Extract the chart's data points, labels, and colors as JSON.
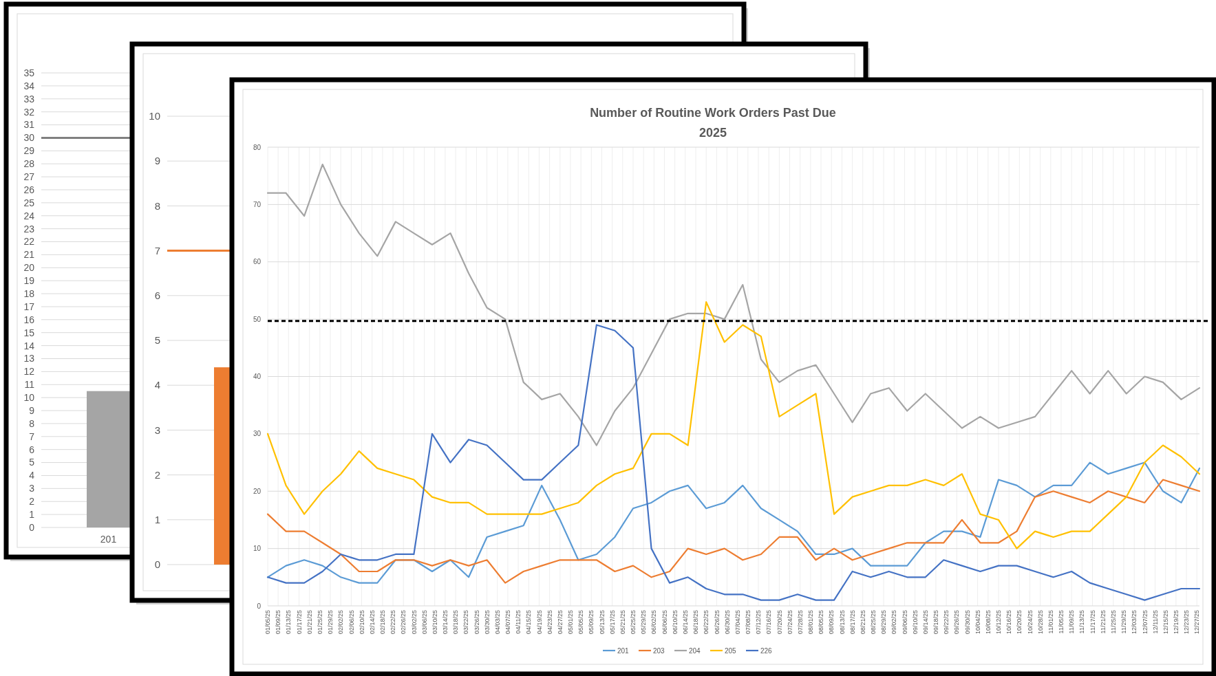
{
  "chart_data": [
    {
      "type": "bar",
      "categories": [
        "201"
      ],
      "values": [
        10.5
      ],
      "color": "#a5a5a5",
      "ylim": [
        0,
        35
      ],
      "yticks": [
        0,
        1,
        2,
        3,
        4,
        5,
        6,
        7,
        8,
        9,
        10,
        11,
        12,
        13,
        14,
        15,
        16,
        17,
        18,
        19,
        20,
        21,
        22,
        23,
        24,
        25,
        26,
        27,
        28,
        29,
        30,
        31,
        32,
        33,
        34,
        35
      ],
      "grid": "y",
      "ref_lines": [
        {
          "axis": "y",
          "value": 30,
          "color": "#808080"
        }
      ]
    },
    {
      "type": "bar",
      "categories": [
        null
      ],
      "values": [
        4.4
      ],
      "color": "#ed7d31",
      "ylim": [
        0,
        10
      ],
      "yticks": [
        0,
        1,
        2,
        3,
        4,
        5,
        6,
        7,
        8,
        9,
        10
      ],
      "grid": "y",
      "ref_lines": [
        {
          "axis": "y",
          "value": 7,
          "color": "#ed7d31"
        }
      ]
    },
    {
      "type": "line",
      "title": "Number of Routine Work Orders Past Due",
      "subtitle": "2025",
      "grid": true,
      "legend": "bottom",
      "line_style": "solid",
      "x": [
        "2025-01-05",
        "2025-01-12",
        "2025-01-19",
        "2025-01-26",
        "2025-02-02",
        "2025-02-09",
        "2025-02-16",
        "2025-02-23",
        "2025-03-02",
        "2025-03-09",
        "2025-03-16",
        "2025-03-23",
        "2025-03-30",
        "2025-04-06",
        "2025-04-13",
        "2025-04-20",
        "2025-04-27",
        "2025-05-04",
        "2025-05-11",
        "2025-05-18",
        "2025-05-25",
        "2025-06-01",
        "2025-06-08",
        "2025-06-15",
        "2025-06-22",
        "2025-06-29",
        "2025-07-06",
        "2025-07-13",
        "2025-07-20",
        "2025-07-27",
        "2025-08-03",
        "2025-08-10",
        "2025-08-17",
        "2025-08-24",
        "2025-08-31",
        "2025-09-07",
        "2025-09-14",
        "2025-09-21",
        "2025-09-28",
        "2025-10-05",
        "2025-10-12",
        "2025-10-19",
        "2025-10-26",
        "2025-11-02",
        "2025-11-09",
        "2025-11-16",
        "2025-11-23",
        "2025-11-30",
        "2025-12-07",
        "2025-12-14",
        "2025-12-21",
        "2025-12-28"
      ],
      "xlim": [
        "2025-01-05",
        "2025-12-28"
      ],
      "xticks": [
        {
          "value": "2025-01-05",
          "label": "01/05/25"
        },
        {
          "value": "2025-01-09",
          "label": "01/09/25"
        },
        {
          "value": "2025-01-13",
          "label": "01/13/25"
        },
        {
          "value": "2025-01-17",
          "label": "01/17/25"
        },
        {
          "value": "2025-01-21",
          "label": "01/21/25"
        },
        {
          "value": "2025-01-25",
          "label": "01/25/25"
        },
        {
          "value": "2025-01-29",
          "label": "01/29/25"
        },
        {
          "value": "2025-02-02",
          "label": "02/02/25"
        },
        {
          "value": "2025-02-06",
          "label": "02/06/25"
        },
        {
          "value": "2025-02-10",
          "label": "02/10/25"
        },
        {
          "value": "2025-02-14",
          "label": "02/14/25"
        },
        {
          "value": "2025-02-18",
          "label": "02/18/25"
        },
        {
          "value": "2025-02-22",
          "label": "02/22/25"
        },
        {
          "value": "2025-02-26",
          "label": "02/26/25"
        },
        {
          "value": "2025-03-02",
          "label": "03/02/25"
        },
        {
          "value": "2025-03-06",
          "label": "03/06/25"
        },
        {
          "value": "2025-03-10",
          "label": "03/10/25"
        },
        {
          "value": "2025-03-14",
          "label": "03/14/25"
        },
        {
          "value": "2025-03-18",
          "label": "03/18/25"
        },
        {
          "value": "2025-03-22",
          "label": "03/22/25"
        },
        {
          "value": "2025-03-26",
          "label": "03/26/25"
        },
        {
          "value": "2025-03-30",
          "label": "03/30/25"
        },
        {
          "value": "2025-04-03",
          "label": "04/03/25"
        },
        {
          "value": "2025-04-07",
          "label": "04/07/25"
        },
        {
          "value": "2025-04-11",
          "label": "04/11/25"
        },
        {
          "value": "2025-04-15",
          "label": "04/15/25"
        },
        {
          "value": "2025-04-19",
          "label": "04/19/25"
        },
        {
          "value": "2025-04-23",
          "label": "04/23/25"
        },
        {
          "value": "2025-04-27",
          "label": "04/27/25"
        },
        {
          "value": "2025-05-01",
          "label": "05/01/25"
        },
        {
          "value": "2025-05-05",
          "label": "05/05/25"
        },
        {
          "value": "2025-05-09",
          "label": "05/09/25"
        },
        {
          "value": "2025-05-13",
          "label": "05/13/25"
        },
        {
          "value": "2025-05-17",
          "label": "05/17/25"
        },
        {
          "value": "2025-05-21",
          "label": "05/21/25"
        },
        {
          "value": "2025-05-25",
          "label": "05/25/25"
        },
        {
          "value": "2025-05-29",
          "label": "05/29/25"
        },
        {
          "value": "2025-06-02",
          "label": "06/02/25"
        },
        {
          "value": "2025-06-06",
          "label": "06/06/25"
        },
        {
          "value": "2025-06-10",
          "label": "06/10/25"
        },
        {
          "value": "2025-06-14",
          "label": "06/14/25"
        },
        {
          "value": "2025-06-18",
          "label": "06/18/25"
        },
        {
          "value": "2025-06-22",
          "label": "06/22/25"
        },
        {
          "value": "2025-06-26",
          "label": "06/26/25"
        },
        {
          "value": "2025-06-30",
          "label": "06/30/25"
        },
        {
          "value": "2025-07-04",
          "label": "07/04/25"
        },
        {
          "value": "2025-07-08",
          "label": "07/08/25"
        },
        {
          "value": "2025-07-12",
          "label": "07/12/25"
        },
        {
          "value": "2025-07-16",
          "label": "07/16/25"
        },
        {
          "value": "2025-07-20",
          "label": "07/20/25"
        },
        {
          "value": "2025-07-24",
          "label": "07/24/25"
        },
        {
          "value": "2025-07-28",
          "label": "07/28/25"
        },
        {
          "value": "2025-08-01",
          "label": "08/01/25"
        },
        {
          "value": "2025-08-05",
          "label": "08/05/25"
        },
        {
          "value": "2025-08-09",
          "label": "08/09/25"
        },
        {
          "value": "2025-08-13",
          "label": "08/13/25"
        },
        {
          "value": "2025-08-17",
          "label": "08/17/25"
        },
        {
          "value": "2025-08-21",
          "label": "08/21/25"
        },
        {
          "value": "2025-08-25",
          "label": "08/25/25"
        },
        {
          "value": "2025-08-29",
          "label": "08/29/25"
        },
        {
          "value": "2025-09-02",
          "label": "09/02/25"
        },
        {
          "value": "2025-09-06",
          "label": "09/06/25"
        },
        {
          "value": "2025-09-10",
          "label": "09/10/25"
        },
        {
          "value": "2025-09-14",
          "label": "09/14/25"
        },
        {
          "value": "2025-09-18",
          "label": "09/18/25"
        },
        {
          "value": "2025-09-22",
          "label": "09/22/25"
        },
        {
          "value": "2025-09-26",
          "label": "09/26/25"
        },
        {
          "value": "2025-09-30",
          "label": "09/30/25"
        },
        {
          "value": "2025-10-04",
          "label": "10/04/25"
        },
        {
          "value": "2025-10-08",
          "label": "10/08/25"
        },
        {
          "value": "2025-10-12",
          "label": "10/12/25"
        },
        {
          "value": "2025-10-16",
          "label": "10/16/25"
        },
        {
          "value": "2025-10-20",
          "label": "10/20/25"
        },
        {
          "value": "2025-10-24",
          "label": "10/24/25"
        },
        {
          "value": "2025-10-28",
          "label": "10/28/25"
        },
        {
          "value": "2025-11-01",
          "label": "11/01/25"
        },
        {
          "value": "2025-11-05",
          "label": "11/05/25"
        },
        {
          "value": "2025-11-09",
          "label": "11/09/25"
        },
        {
          "value": "2025-11-13",
          "label": "11/13/25"
        },
        {
          "value": "2025-11-17",
          "label": "11/17/25"
        },
        {
          "value": "2025-11-21",
          "label": "11/21/25"
        },
        {
          "value": "2025-11-25",
          "label": "11/25/25"
        },
        {
          "value": "2025-11-29",
          "label": "11/29/25"
        },
        {
          "value": "2025-12-03",
          "label": "12/03/25"
        },
        {
          "value": "2025-12-07",
          "label": "12/07/25"
        },
        {
          "value": "2025-12-11",
          "label": "12/11/25"
        },
        {
          "value": "2025-12-15",
          "label": "12/15/25"
        },
        {
          "value": "2025-12-19",
          "label": "12/19/25"
        },
        {
          "value": "2025-12-23",
          "label": "12/23/25"
        },
        {
          "value": "2025-12-27",
          "label": "12/27/25"
        }
      ],
      "ylim": [
        0,
        80
      ],
      "yticks": [
        0,
        10,
        20,
        30,
        40,
        50,
        60,
        70,
        80
      ],
      "ref_lines": [
        {
          "axis": "y",
          "value": 49.7,
          "color": "#000000",
          "line_style": "dashed"
        }
      ],
      "series": [
        {
          "name": "201",
          "color": "#5b9bd5",
          "values": [
            5,
            7,
            8,
            7,
            5,
            4,
            4,
            8,
            8,
            6,
            8,
            5,
            12,
            13,
            14,
            21,
            15,
            8,
            9,
            12,
            17,
            18,
            20,
            21,
            17,
            18,
            21,
            17,
            15,
            13,
            9,
            9,
            10,
            7,
            7,
            7,
            11,
            13,
            13,
            12,
            22,
            21,
            19,
            21,
            21,
            25,
            23,
            24,
            25,
            20,
            18,
            24
          ]
        },
        {
          "name": "203",
          "color": "#ed7d31",
          "values": [
            16,
            13,
            13,
            11,
            9,
            6,
            6,
            8,
            8,
            7,
            8,
            7,
            8,
            4,
            6,
            7,
            8,
            8,
            8,
            6,
            7,
            5,
            6,
            10,
            9,
            10,
            8,
            9,
            12,
            12,
            8,
            10,
            8,
            9,
            10,
            11,
            11,
            11,
            15,
            11,
            11,
            13,
            19,
            20,
            19,
            18,
            20,
            19,
            18,
            22,
            21,
            20
          ]
        },
        {
          "name": "204",
          "color": "#a5a5a5",
          "values": [
            72,
            72,
            68,
            77,
            70,
            65,
            61,
            67,
            65,
            63,
            65,
            58,
            52,
            50,
            39,
            36,
            37,
            33,
            28,
            34,
            38,
            44,
            50,
            51,
            51,
            50,
            56,
            43,
            39,
            41,
            42,
            37,
            32,
            37,
            38,
            34,
            37,
            34,
            31,
            33,
            31,
            32,
            33,
            37,
            41,
            37,
            41,
            37,
            40,
            39,
            36,
            38
          ]
        },
        {
          "name": "205",
          "color": "#ffc000",
          "values": [
            30,
            21,
            16,
            20,
            23,
            27,
            24,
            23,
            22,
            19,
            18,
            18,
            16,
            16,
            16,
            16,
            17,
            18,
            21,
            23,
            24,
            30,
            30,
            28,
            53,
            46,
            49,
            47,
            33,
            35,
            37,
            16,
            19,
            20,
            21,
            21,
            22,
            21,
            23,
            16,
            15,
            10,
            13,
            12,
            13,
            13,
            16,
            19,
            25,
            28,
            26,
            23
          ]
        },
        {
          "name": "226",
          "color": "#4472c4",
          "values": [
            5,
            4,
            4,
            6,
            9,
            8,
            8,
            9,
            9,
            30,
            25,
            29,
            28,
            25,
            22,
            22,
            25,
            28,
            49,
            48,
            45,
            10,
            4,
            5,
            3,
            2,
            2,
            1,
            1,
            2,
            1,
            1,
            6,
            5,
            6,
            5,
            5,
            8,
            7,
            6,
            7,
            7,
            6,
            5,
            6,
            4,
            3,
            2,
            1,
            2,
            3,
            3
          ]
        }
      ]
    }
  ]
}
